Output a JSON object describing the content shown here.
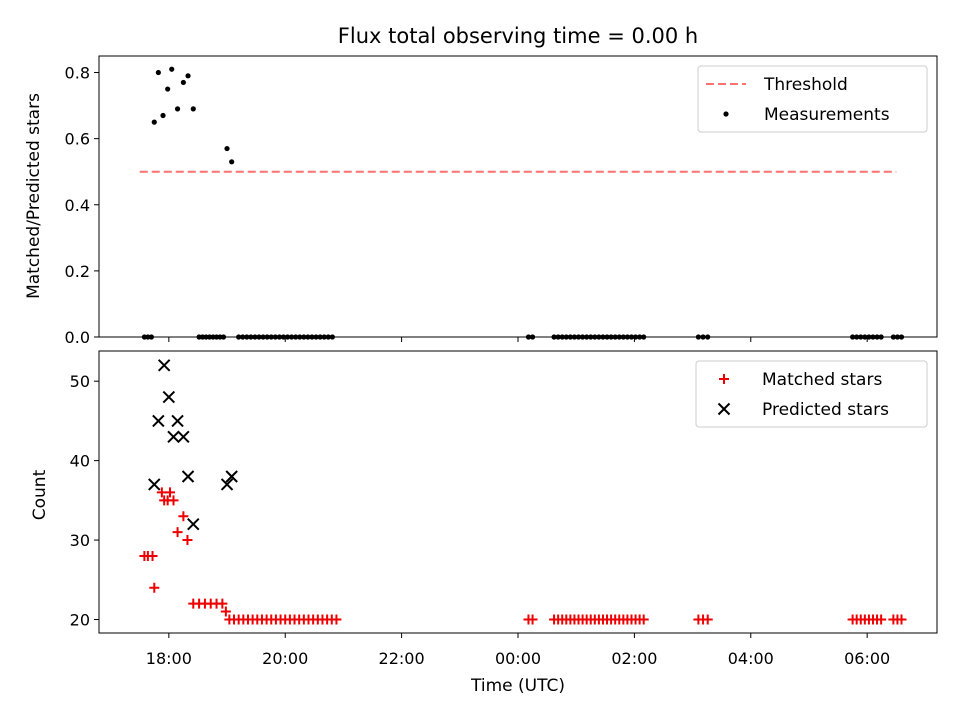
{
  "chart_data": {
    "type": "scatter",
    "title": "Flux total observing time = 0.00 h",
    "x_tick_labels": [
      "18:00",
      "20:00",
      "22:00",
      "00:00",
      "02:00",
      "04:00",
      "06:00"
    ],
    "x_unit": "hours since 16:00 UTC on the first night",
    "xlabel": "Time (UTC)",
    "xlim": [
      0.8,
      15.2
    ],
    "panels": [
      {
        "ylabel": "Matched/Predicted stars",
        "ylim": [
          0,
          0.85
        ],
        "yticks": [
          0,
          0.2,
          0.4,
          0.6,
          0.8
        ],
        "ytick_labels": [
          "0.0",
          "0.2",
          "0.4",
          "0.6",
          "0.8"
        ],
        "legend": {
          "placement": "top-right",
          "entries": [
            "Threshold",
            "Measurements"
          ]
        },
        "series": [
          {
            "name": "Threshold",
            "style": "dashed-line",
            "color": "#ff7070",
            "x": [
              1.5,
              14.5
            ],
            "y": [
              0.5,
              0.5
            ]
          },
          {
            "name": "Measurements",
            "style": "dot",
            "color": "#000000",
            "points": [
              [
                1.75,
                0.65
              ],
              [
                1.82,
                0.8
              ],
              [
                1.9,
                0.67
              ],
              [
                1.98,
                0.75
              ],
              [
                2.05,
                0.81
              ],
              [
                2.15,
                0.69
              ],
              [
                2.25,
                0.77
              ],
              [
                2.33,
                0.79
              ],
              [
                2.42,
                0.69
              ],
              [
                3.0,
                0.57
              ],
              [
                3.08,
                0.53
              ],
              [
                1.58,
                0
              ],
              [
                1.64,
                0
              ],
              [
                1.7,
                0
              ],
              [
                2.52,
                0
              ],
              [
                2.58,
                0
              ],
              [
                2.64,
                0
              ],
              [
                2.7,
                0
              ],
              [
                2.76,
                0
              ],
              [
                2.82,
                0
              ],
              [
                2.88,
                0
              ],
              [
                2.94,
                0
              ],
              [
                3.2,
                0
              ],
              [
                3.27,
                0
              ],
              [
                3.34,
                0
              ],
              [
                3.41,
                0
              ],
              [
                3.48,
                0
              ],
              [
                3.55,
                0
              ],
              [
                3.62,
                0
              ],
              [
                3.69,
                0
              ],
              [
                3.76,
                0
              ],
              [
                3.83,
                0
              ],
              [
                3.9,
                0
              ],
              [
                3.97,
                0
              ],
              [
                4.04,
                0
              ],
              [
                4.11,
                0
              ],
              [
                4.18,
                0
              ],
              [
                4.25,
                0
              ],
              [
                4.32,
                0
              ],
              [
                4.39,
                0
              ],
              [
                4.46,
                0
              ],
              [
                4.53,
                0
              ],
              [
                4.6,
                0
              ],
              [
                4.67,
                0
              ],
              [
                4.74,
                0
              ],
              [
                4.81,
                0
              ],
              [
                8.18,
                0
              ],
              [
                8.25,
                0
              ],
              [
                8.62,
                0
              ],
              [
                8.69,
                0
              ],
              [
                8.76,
                0
              ],
              [
                8.83,
                0
              ],
              [
                8.9,
                0
              ],
              [
                8.97,
                0
              ],
              [
                9.04,
                0
              ],
              [
                9.11,
                0
              ],
              [
                9.18,
                0
              ],
              [
                9.25,
                0
              ],
              [
                9.32,
                0
              ],
              [
                9.39,
                0
              ],
              [
                9.46,
                0
              ],
              [
                9.53,
                0
              ],
              [
                9.6,
                0
              ],
              [
                9.67,
                0
              ],
              [
                9.74,
                0
              ],
              [
                9.81,
                0
              ],
              [
                9.88,
                0
              ],
              [
                9.95,
                0
              ],
              [
                10.02,
                0
              ],
              [
                10.09,
                0
              ],
              [
                10.16,
                0
              ],
              [
                11.1,
                0
              ],
              [
                11.18,
                0
              ],
              [
                11.26,
                0
              ],
              [
                13.75,
                0
              ],
              [
                13.82,
                0
              ],
              [
                13.89,
                0
              ],
              [
                13.96,
                0
              ],
              [
                14.03,
                0
              ],
              [
                14.1,
                0
              ],
              [
                14.17,
                0
              ],
              [
                14.24,
                0
              ],
              [
                14.45,
                0
              ],
              [
                14.52,
                0
              ],
              [
                14.59,
                0
              ]
            ]
          }
        ]
      },
      {
        "ylabel": "Count",
        "ylim": [
          18.3,
          53.8
        ],
        "yticks": [
          20,
          30,
          40,
          50
        ],
        "ytick_labels": [
          "20",
          "30",
          "40",
          "50"
        ],
        "legend": {
          "placement": "top-right",
          "entries": [
            "Matched stars",
            "Predicted stars"
          ]
        },
        "series": [
          {
            "name": "Matched stars",
            "style": "plus",
            "color": "#ee0000",
            "points": [
              [
                1.58,
                28
              ],
              [
                1.64,
                28
              ],
              [
                1.72,
                28
              ],
              [
                1.75,
                24
              ],
              [
                1.88,
                36
              ],
              [
                1.92,
                35
              ],
              [
                1.98,
                35
              ],
              [
                2.02,
                36
              ],
              [
                2.08,
                35
              ],
              [
                2.15,
                31
              ],
              [
                2.25,
                33
              ],
              [
                2.32,
                30
              ],
              [
                2.42,
                22
              ],
              [
                2.52,
                22
              ],
              [
                2.62,
                22
              ],
              [
                2.72,
                22
              ],
              [
                2.82,
                22
              ],
              [
                2.92,
                22
              ],
              [
                2.98,
                21
              ],
              [
                3.04,
                20
              ],
              [
                3.12,
                20
              ],
              [
                3.2,
                20
              ],
              [
                3.28,
                20
              ],
              [
                3.36,
                20
              ],
              [
                3.44,
                20
              ],
              [
                3.52,
                20
              ],
              [
                3.6,
                20
              ],
              [
                3.68,
                20
              ],
              [
                3.76,
                20
              ],
              [
                3.84,
                20
              ],
              [
                3.92,
                20
              ],
              [
                4.0,
                20
              ],
              [
                4.08,
                20
              ],
              [
                4.16,
                20
              ],
              [
                4.24,
                20
              ],
              [
                4.32,
                20
              ],
              [
                4.4,
                20
              ],
              [
                4.48,
                20
              ],
              [
                4.56,
                20
              ],
              [
                4.64,
                20
              ],
              [
                4.72,
                20
              ],
              [
                4.8,
                20
              ],
              [
                4.88,
                20
              ],
              [
                8.18,
                20
              ],
              [
                8.25,
                20
              ],
              [
                8.62,
                20
              ],
              [
                8.69,
                20
              ],
              [
                8.76,
                20
              ],
              [
                8.83,
                20
              ],
              [
                8.9,
                20
              ],
              [
                8.97,
                20
              ],
              [
                9.04,
                20
              ],
              [
                9.11,
                20
              ],
              [
                9.18,
                20
              ],
              [
                9.25,
                20
              ],
              [
                9.32,
                20
              ],
              [
                9.39,
                20
              ],
              [
                9.46,
                20
              ],
              [
                9.53,
                20
              ],
              [
                9.6,
                20
              ],
              [
                9.67,
                20
              ],
              [
                9.74,
                20
              ],
              [
                9.81,
                20
              ],
              [
                9.88,
                20
              ],
              [
                9.95,
                20
              ],
              [
                10.02,
                20
              ],
              [
                10.09,
                20
              ],
              [
                10.16,
                20
              ],
              [
                11.1,
                20
              ],
              [
                11.18,
                20
              ],
              [
                11.26,
                20
              ],
              [
                13.75,
                20
              ],
              [
                13.82,
                20
              ],
              [
                13.89,
                20
              ],
              [
                13.96,
                20
              ],
              [
                14.03,
                20
              ],
              [
                14.1,
                20
              ],
              [
                14.17,
                20
              ],
              [
                14.24,
                20
              ],
              [
                14.45,
                20
              ],
              [
                14.52,
                20
              ],
              [
                14.59,
                20
              ]
            ]
          },
          {
            "name": "Predicted stars",
            "style": "x",
            "color": "#000000",
            "points": [
              [
                1.75,
                37
              ],
              [
                1.82,
                45
              ],
              [
                1.92,
                52
              ],
              [
                2.0,
                48
              ],
              [
                2.08,
                43
              ],
              [
                2.15,
                45
              ],
              [
                2.25,
                43
              ],
              [
                2.33,
                38
              ],
              [
                2.42,
                32
              ],
              [
                3.0,
                37
              ],
              [
                3.08,
                38
              ]
            ]
          }
        ]
      }
    ]
  }
}
